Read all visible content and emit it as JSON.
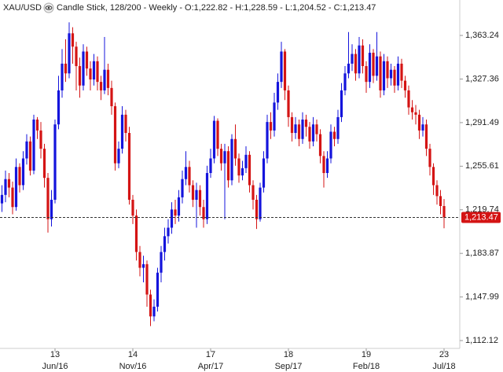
{
  "chart_data": {
    "type": "candlestick",
    "symbol": "XAU/USD",
    "description": "Candle Stick, 128/200 - Weekly - O:1,222.82 - H:1,228.59 - L:1,204.52 - C:1,213.47",
    "up_color": "#1414dc",
    "down_color": "#d41414",
    "ylim": [
      1097.9,
      1392.4
    ],
    "yticks": [
      {
        "value": 1112.12,
        "label": "1,112.12"
      },
      {
        "value": 1147.99,
        "label": "1,147.99"
      },
      {
        "value": 1183.87,
        "label": "1,183.87"
      },
      {
        "value": 1219.74,
        "label": "1,219.74"
      },
      {
        "value": 1255.61,
        "label": "1,255.61"
      },
      {
        "value": 1291.49,
        "label": "1,291.49"
      },
      {
        "value": 1327.36,
        "label": "1,327.36"
      },
      {
        "value": 1363.24,
        "label": "1,363.24"
      }
    ],
    "last_price": {
      "value": 1213.47,
      "label": "1,213.47"
    },
    "categories": [
      null,
      null,
      null,
      null,
      null,
      null,
      null,
      null,
      null,
      null,
      null,
      null,
      null,
      null,
      null,
      {
        "day": "13",
        "month": "Jun/16"
      },
      null,
      null,
      null,
      null,
      null,
      null,
      null,
      null,
      null,
      null,
      null,
      null,
      null,
      null,
      null,
      null,
      null,
      null,
      null,
      null,
      null,
      {
        "day": "14",
        "month": "Nov/16"
      },
      null,
      null,
      null,
      null,
      null,
      null,
      null,
      null,
      null,
      null,
      null,
      null,
      null,
      null,
      null,
      null,
      null,
      null,
      null,
      null,
      null,
      {
        "day": "17",
        "month": "Apr/17"
      },
      null,
      null,
      null,
      null,
      null,
      null,
      null,
      null,
      null,
      null,
      null,
      null,
      null,
      null,
      null,
      null,
      null,
      null,
      null,
      null,
      null,
      {
        "day": "18",
        "month": "Sep/17"
      },
      null,
      null,
      null,
      null,
      null,
      null,
      null,
      null,
      null,
      null,
      null,
      null,
      null,
      null,
      null,
      null,
      null,
      null,
      null,
      null,
      null,
      {
        "day": "19",
        "month": "Feb/18"
      },
      null,
      null,
      null,
      null,
      null,
      null,
      null,
      null,
      null,
      null,
      null,
      null,
      null,
      null,
      null,
      null,
      null,
      null,
      null,
      null,
      null,
      {
        "day": "23",
        "month": "Jul/18"
      }
    ],
    "open": [
      1225,
      1232,
      1245,
      1238,
      1222,
      1255,
      1240,
      1262,
      1276,
      1252,
      1294,
      1285,
      1270,
      1246,
      1212,
      1228,
      1290,
      1318,
      1340,
      1332,
      1365,
      1354,
      1338,
      1322,
      1350,
      1336,
      1327,
      1342,
      1325,
      1318,
      1335,
      1320,
      1305,
      1258,
      1270,
      1298,
      1283,
      1228,
      1215,
      1185,
      1172,
      1175,
      1150,
      1132,
      1140,
      1168,
      1185,
      1198,
      1205,
      1220,
      1215,
      1230,
      1245,
      1255,
      1240,
      1228,
      1236,
      1222,
      1212,
      1250,
      1262,
      1293,
      1270,
      1258,
      1268,
      1244,
      1278,
      1262,
      1248,
      1254,
      1265,
      1240,
      1228,
      1212,
      1238,
      1262,
      1292,
      1285,
      1308,
      1325,
      1350,
      1318,
      1296,
      1283,
      1290,
      1278,
      1294,
      1288,
      1276,
      1290,
      1282,
      1264,
      1250,
      1262,
      1284,
      1278,
      1296,
      1318,
      1332,
      1340,
      1348,
      1332,
      1355,
      1338,
      1325,
      1349,
      1330,
      1346,
      1318,
      1342,
      1328,
      1335,
      1322,
      1340,
      1326,
      1318,
      1304,
      1300,
      1298,
      1285,
      1290,
      1270,
      1255,
      1240,
      1231,
      1222.82
    ],
    "high": [
      1240,
      1252,
      1250,
      1243,
      1262,
      1258,
      1268,
      1282,
      1280,
      1298,
      1296,
      1292,
      1274,
      1250,
      1236,
      1294,
      1330,
      1352,
      1360,
      1374,
      1370,
      1358,
      1345,
      1356,
      1354,
      1342,
      1348,
      1346,
      1330,
      1362,
      1340,
      1326,
      1308,
      1276,
      1305,
      1302,
      1288,
      1232,
      1220,
      1190,
      1182,
      1178,
      1154,
      1146,
      1172,
      1190,
      1205,
      1212,
      1226,
      1228,
      1236,
      1252,
      1268,
      1260,
      1244,
      1242,
      1240,
      1228,
      1256,
      1270,
      1297,
      1295,
      1274,
      1274,
      1272,
      1282,
      1290,
      1266,
      1260,
      1272,
      1268,
      1244,
      1232,
      1242,
      1268,
      1298,
      1300,
      1316,
      1332,
      1358,
      1352,
      1322,
      1300,
      1296,
      1294,
      1300,
      1298,
      1292,
      1296,
      1294,
      1286,
      1268,
      1268,
      1290,
      1288,
      1302,
      1324,
      1338,
      1366,
      1356,
      1352,
      1362,
      1360,
      1342,
      1356,
      1352,
      1366,
      1350,
      1348,
      1346,
      1340,
      1338,
      1346,
      1344,
      1330,
      1322,
      1310,
      1306,
      1302,
      1296,
      1294,
      1274,
      1258,
      1244,
      1236,
      1228.59
    ],
    "low": [
      1218,
      1226,
      1230,
      1216,
      1219,
      1234,
      1236,
      1257,
      1248,
      1249,
      1278,
      1262,
      1238,
      1201,
      1206,
      1225,
      1286,
      1312,
      1325,
      1328,
      1340,
      1318,
      1312,
      1318,
      1330,
      1318,
      1322,
      1318,
      1310,
      1315,
      1314,
      1298,
      1252,
      1254,
      1266,
      1276,
      1224,
      1208,
      1178,
      1165,
      1160,
      1140,
      1124,
      1128,
      1136,
      1160,
      1178,
      1192,
      1200,
      1208,
      1210,
      1225,
      1240,
      1234,
      1222,
      1205,
      1215,
      1205,
      1208,
      1246,
      1258,
      1264,
      1252,
      1212,
      1238,
      1240,
      1256,
      1242,
      1244,
      1250,
      1234,
      1220,
      1204,
      1210,
      1234,
      1258,
      1278,
      1280,
      1302,
      1320,
      1310,
      1288,
      1276,
      1278,
      1272,
      1274,
      1280,
      1270,
      1272,
      1276,
      1258,
      1238,
      1246,
      1258,
      1272,
      1274,
      1292,
      1314,
      1328,
      1334,
      1326,
      1328,
      1332,
      1316,
      1320,
      1324,
      1326,
      1312,
      1314,
      1320,
      1322,
      1316,
      1318,
      1320,
      1312,
      1298,
      1294,
      1290,
      1278,
      1280,
      1264,
      1248,
      1232,
      1224,
      1216,
      1204.52
    ],
    "close": [
      1232,
      1245,
      1238,
      1222,
      1255,
      1240,
      1262,
      1276,
      1252,
      1294,
      1285,
      1270,
      1246,
      1212,
      1228,
      1290,
      1318,
      1340,
      1332,
      1365,
      1354,
      1338,
      1322,
      1350,
      1336,
      1327,
      1342,
      1325,
      1318,
      1335,
      1320,
      1305,
      1258,
      1270,
      1298,
      1283,
      1228,
      1215,
      1185,
      1172,
      1175,
      1150,
      1132,
      1140,
      1168,
      1185,
      1198,
      1205,
      1220,
      1215,
      1230,
      1245,
      1255,
      1240,
      1228,
      1236,
      1222,
      1212,
      1250,
      1262,
      1293,
      1270,
      1258,
      1268,
      1244,
      1278,
      1262,
      1248,
      1254,
      1265,
      1240,
      1228,
      1212,
      1238,
      1262,
      1292,
      1285,
      1308,
      1325,
      1350,
      1318,
      1296,
      1283,
      1290,
      1278,
      1294,
      1288,
      1276,
      1290,
      1282,
      1264,
      1250,
      1262,
      1284,
      1278,
      1296,
      1318,
      1332,
      1340,
      1348,
      1332,
      1355,
      1338,
      1325,
      1349,
      1330,
      1346,
      1318,
      1342,
      1328,
      1335,
      1322,
      1340,
      1326,
      1318,
      1304,
      1300,
      1298,
      1285,
      1290,
      1270,
      1255,
      1240,
      1231,
      1222.82,
      1213.47
    ]
  }
}
